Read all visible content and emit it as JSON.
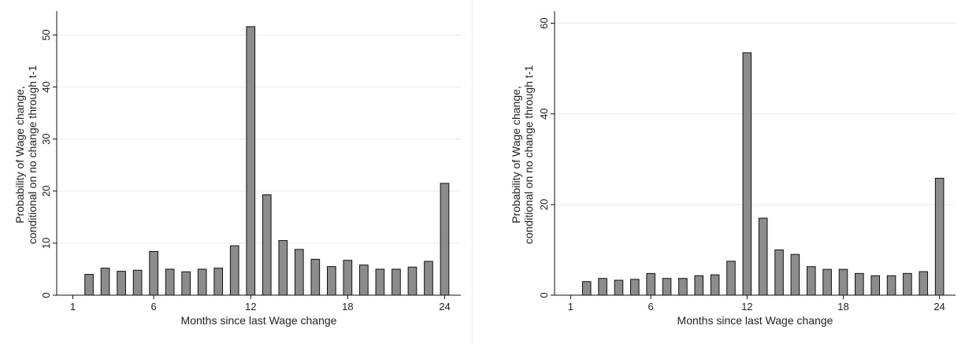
{
  "chart_data": [
    {
      "type": "bar",
      "title": "",
      "xlabel": "Months since last Wage change",
      "ylabel_line1": "Probability of Wage change,",
      "ylabel_line2": "conditional on no change through t-1",
      "x": [
        2,
        3,
        4,
        5,
        6,
        7,
        8,
        9,
        10,
        11,
        12,
        13,
        14,
        15,
        16,
        17,
        18,
        19,
        20,
        21,
        22,
        23,
        24
      ],
      "values": [
        4.0,
        5.2,
        4.6,
        4.8,
        8.4,
        5.0,
        4.5,
        5.0,
        5.2,
        9.5,
        51.6,
        19.3,
        10.5,
        8.8,
        6.9,
        5.5,
        6.7,
        5.8,
        5.0,
        5.0,
        5.4,
        6.5,
        21.5
      ],
      "xlim": [
        0,
        25
      ],
      "ylim": [
        0,
        54
      ],
      "xticks": [
        1,
        6,
        12,
        18,
        24
      ],
      "yticks": [
        0,
        10,
        20,
        30,
        40,
        50
      ],
      "grid": true,
      "bar_color": "#8c8c8c"
    },
    {
      "type": "bar",
      "title": "",
      "xlabel": "Months since last Wage change",
      "ylabel_line1": "Probability of Wage change,",
      "ylabel_line2": "conditional on no change through t-1",
      "x": [
        2,
        3,
        4,
        5,
        6,
        7,
        8,
        9,
        10,
        11,
        12,
        13,
        14,
        15,
        16,
        17,
        18,
        19,
        20,
        21,
        22,
        23,
        24
      ],
      "values": [
        3.0,
        3.7,
        3.3,
        3.5,
        4.8,
        3.7,
        3.7,
        4.3,
        4.5,
        7.5,
        53.5,
        17.0,
        10.0,
        9.0,
        6.3,
        5.7,
        5.7,
        4.8,
        4.3,
        4.3,
        4.8,
        5.2,
        25.8
      ],
      "xlim": [
        0,
        25
      ],
      "ylim": [
        0,
        62
      ],
      "xticks": [
        1,
        6,
        12,
        18,
        24
      ],
      "yticks": [
        0,
        20,
        40,
        60
      ],
      "grid": true,
      "bar_color": "#8c8c8c"
    }
  ]
}
